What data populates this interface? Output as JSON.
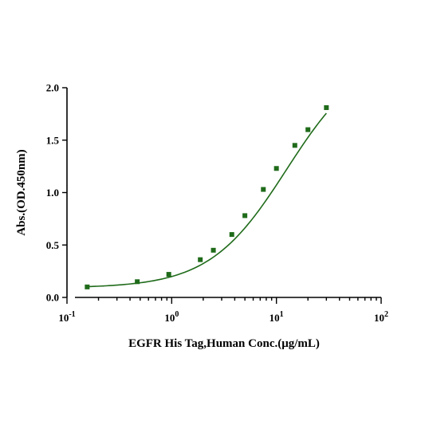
{
  "chart_data": {
    "type": "scatter",
    "title": "",
    "xlabel": "EGFR His Tag,Human Conc.(μg/mL)",
    "ylabel": "Abs.(OD.450nm)",
    "x_scale": "log",
    "xlim": [
      0.1,
      100
    ],
    "ylim": [
      0,
      2.0
    ],
    "x_ticks": [
      {
        "value": 0.1,
        "base": "10",
        "exp": "-1"
      },
      {
        "value": 1,
        "base": "10",
        "exp": "0"
      },
      {
        "value": 10,
        "base": "10",
        "exp": "1"
      },
      {
        "value": 100,
        "base": "10",
        "exp": "2"
      }
    ],
    "y_ticks": [
      {
        "value": 0,
        "label": "0.0"
      },
      {
        "value": 0.5,
        "label": "0.5"
      },
      {
        "value": 1.0,
        "label": "1.0"
      },
      {
        "value": 1.5,
        "label": "1.5"
      },
      {
        "value": 2.0,
        "label": "2.0"
      }
    ],
    "grid": false,
    "legend": "none",
    "color": "#1f6b1a",
    "series": [
      {
        "marker": "square",
        "fit": "sigmoidal",
        "x": [
          0.156,
          0.469,
          0.938,
          1.875,
          2.5,
          3.75,
          5.0,
          7.5,
          10,
          15,
          20,
          30
        ],
        "y": [
          0.1,
          0.15,
          0.22,
          0.36,
          0.45,
          0.6,
          0.78,
          1.03,
          1.23,
          1.45,
          1.6,
          1.81
        ]
      }
    ]
  }
}
